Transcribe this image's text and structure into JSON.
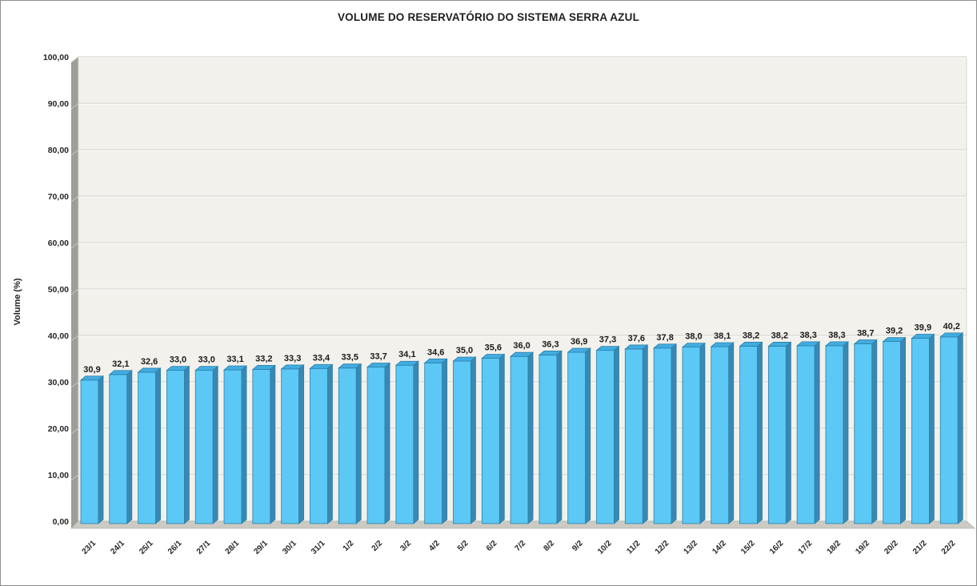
{
  "chart_data": {
    "type": "bar",
    "style": "3d-column",
    "title": "VOLUME DO RESERVATÓRIO DO SISTEMA SERRA AZUL",
    "ylabel": "Volume (%)",
    "xlabel": "",
    "ylim": [
      0,
      100
    ],
    "y_tick_step": 10,
    "y_tick_labels": [
      "0,00",
      "10,00",
      "20,00",
      "30,00",
      "40,00",
      "50,00",
      "60,00",
      "70,00",
      "80,00",
      "90,00",
      "100,00"
    ],
    "grid": true,
    "legend_position": "none",
    "categories": [
      "23/1",
      "24/1",
      "25/1",
      "26/1",
      "27/1",
      "28/1",
      "29/1",
      "30/1",
      "31/1",
      "1/2",
      "2/2",
      "3/2",
      "4/2",
      "5/2",
      "6/2",
      "7/2",
      "8/2",
      "9/2",
      "10/2",
      "11/2",
      "12/2",
      "13/2",
      "14/2",
      "15/2",
      "16/2",
      "17/2",
      "18/2",
      "19/2",
      "20/2",
      "21/2",
      "22/2"
    ],
    "values": [
      30.9,
      32.1,
      32.6,
      33.0,
      33.0,
      33.1,
      33.2,
      33.3,
      33.4,
      33.5,
      33.7,
      34.1,
      34.6,
      35.0,
      35.6,
      36.0,
      36.3,
      36.9,
      37.3,
      37.6,
      37.8,
      38.0,
      38.1,
      38.2,
      38.2,
      38.3,
      38.3,
      38.7,
      39.2,
      39.9,
      40.2
    ],
    "data_labels": [
      "30,9",
      "32,1",
      "32,6",
      "33,0",
      "33,0",
      "33,1",
      "33,2",
      "33,3",
      "33,4",
      "33,5",
      "33,7",
      "34,1",
      "34,6",
      "35,0",
      "35,6",
      "36,0",
      "36,3",
      "36,9",
      "37,3",
      "37,6",
      "37,8",
      "38,0",
      "38,1",
      "38,2",
      "38,2",
      "38,3",
      "38,3",
      "38,7",
      "39,2",
      "39,9",
      "40,2"
    ],
    "colors": {
      "bar_front": "#5BC8F5",
      "bar_top": "#41ACE0",
      "bar_side": "#3789B4",
      "bar_edge": "#2E7FA8",
      "back_wall": "#F3F1EC",
      "back_wall_edge": "#D8D7D0",
      "side_wall": "#9E9D97",
      "side_wall_grid": "#C6C5BF",
      "floor": "#CBCAC3",
      "floor_edge": "#B4B3AC",
      "gridline": "#D9D8D1",
      "gridline_highlight": "#FBFAF7",
      "label_text": "#1A1A1A",
      "tick_text": "#262626",
      "frame_border": "#8F8F8F"
    }
  }
}
